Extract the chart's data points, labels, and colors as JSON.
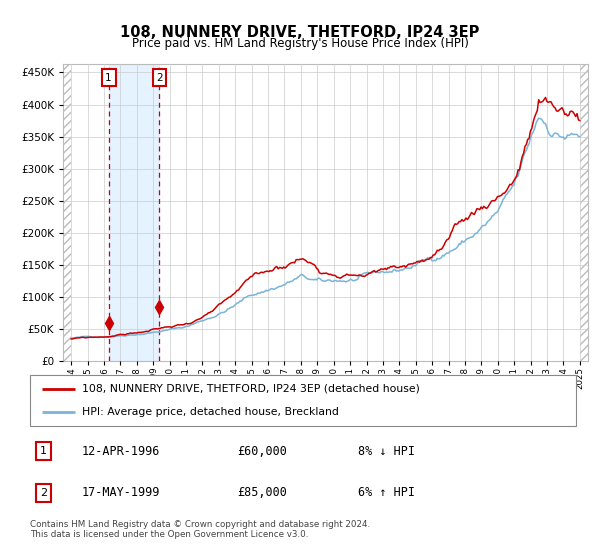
{
  "title": "108, NUNNERY DRIVE, THETFORD, IP24 3EP",
  "subtitle": "Price paid vs. HM Land Registry's House Price Index (HPI)",
  "legend_line1": "108, NUNNERY DRIVE, THETFORD, IP24 3EP (detached house)",
  "legend_line2": "HPI: Average price, detached house, Breckland",
  "transaction1_date": "12-APR-1996",
  "transaction1_price": "£60,000",
  "transaction1_hpi": "8% ↓ HPI",
  "transaction2_date": "17-MAY-1999",
  "transaction2_price": "£85,000",
  "transaction2_hpi": "6% ↑ HPI",
  "footer": "Contains HM Land Registry data © Crown copyright and database right 2024.\nThis data is licensed under the Open Government Licence v3.0.",
  "hpi_color": "#7ab4d8",
  "price_color": "#cc0000",
  "marker_color": "#cc0000",
  "transaction1_x": 1996.28,
  "transaction2_x": 1999.38,
  "transaction1_y": 60000,
  "transaction2_y": 85000,
  "ylim_max": 462500,
  "ylim_min": 0,
  "xlim_min": 1993.5,
  "xlim_max": 2025.5,
  "yticks": [
    0,
    50000,
    100000,
    150000,
    200000,
    250000,
    300000,
    350000,
    400000,
    450000
  ],
  "xtick_years": [
    1994,
    1995,
    1996,
    1997,
    1998,
    1999,
    2000,
    2001,
    2002,
    2003,
    2004,
    2005,
    2006,
    2007,
    2008,
    2009,
    2010,
    2011,
    2012,
    2013,
    2014,
    2015,
    2016,
    2017,
    2018,
    2019,
    2020,
    2021,
    2022,
    2023,
    2024,
    2025
  ]
}
